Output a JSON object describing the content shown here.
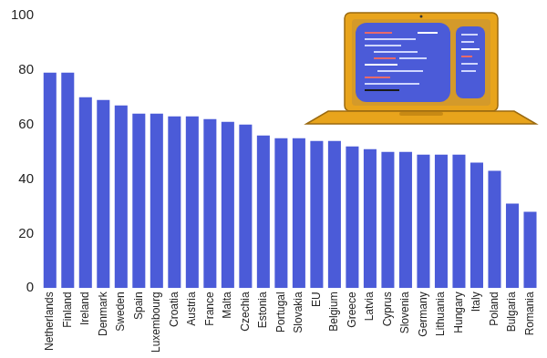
{
  "chart_data": {
    "type": "bar",
    "categories": [
      "Netherlands",
      "Finland",
      "Ireland",
      "Denmark",
      "Sweden",
      "Spain",
      "Luxembourg",
      "Croatia",
      "Austria",
      "France",
      "Malta",
      "Czechia",
      "Estonia",
      "Portugal",
      "Slovakia",
      "EU",
      "Belgium",
      "Greece",
      "Latvia",
      "Cyprus",
      "Slovenia",
      "Germany",
      "Lithuania",
      "Hungary",
      "Italy",
      "Poland",
      "Bulgaria",
      "Romania"
    ],
    "values": [
      79,
      79,
      70,
      69,
      67,
      64,
      64,
      63,
      63,
      62,
      61,
      60,
      56,
      55,
      55,
      54,
      54,
      52,
      51,
      50,
      50,
      49,
      49,
      49,
      46,
      43,
      31,
      28
    ],
    "color": "#4b5bd8",
    "ylim": [
      0,
      100
    ],
    "yticks": [
      0,
      20,
      40,
      60,
      80,
      100
    ],
    "grid": false
  }
}
